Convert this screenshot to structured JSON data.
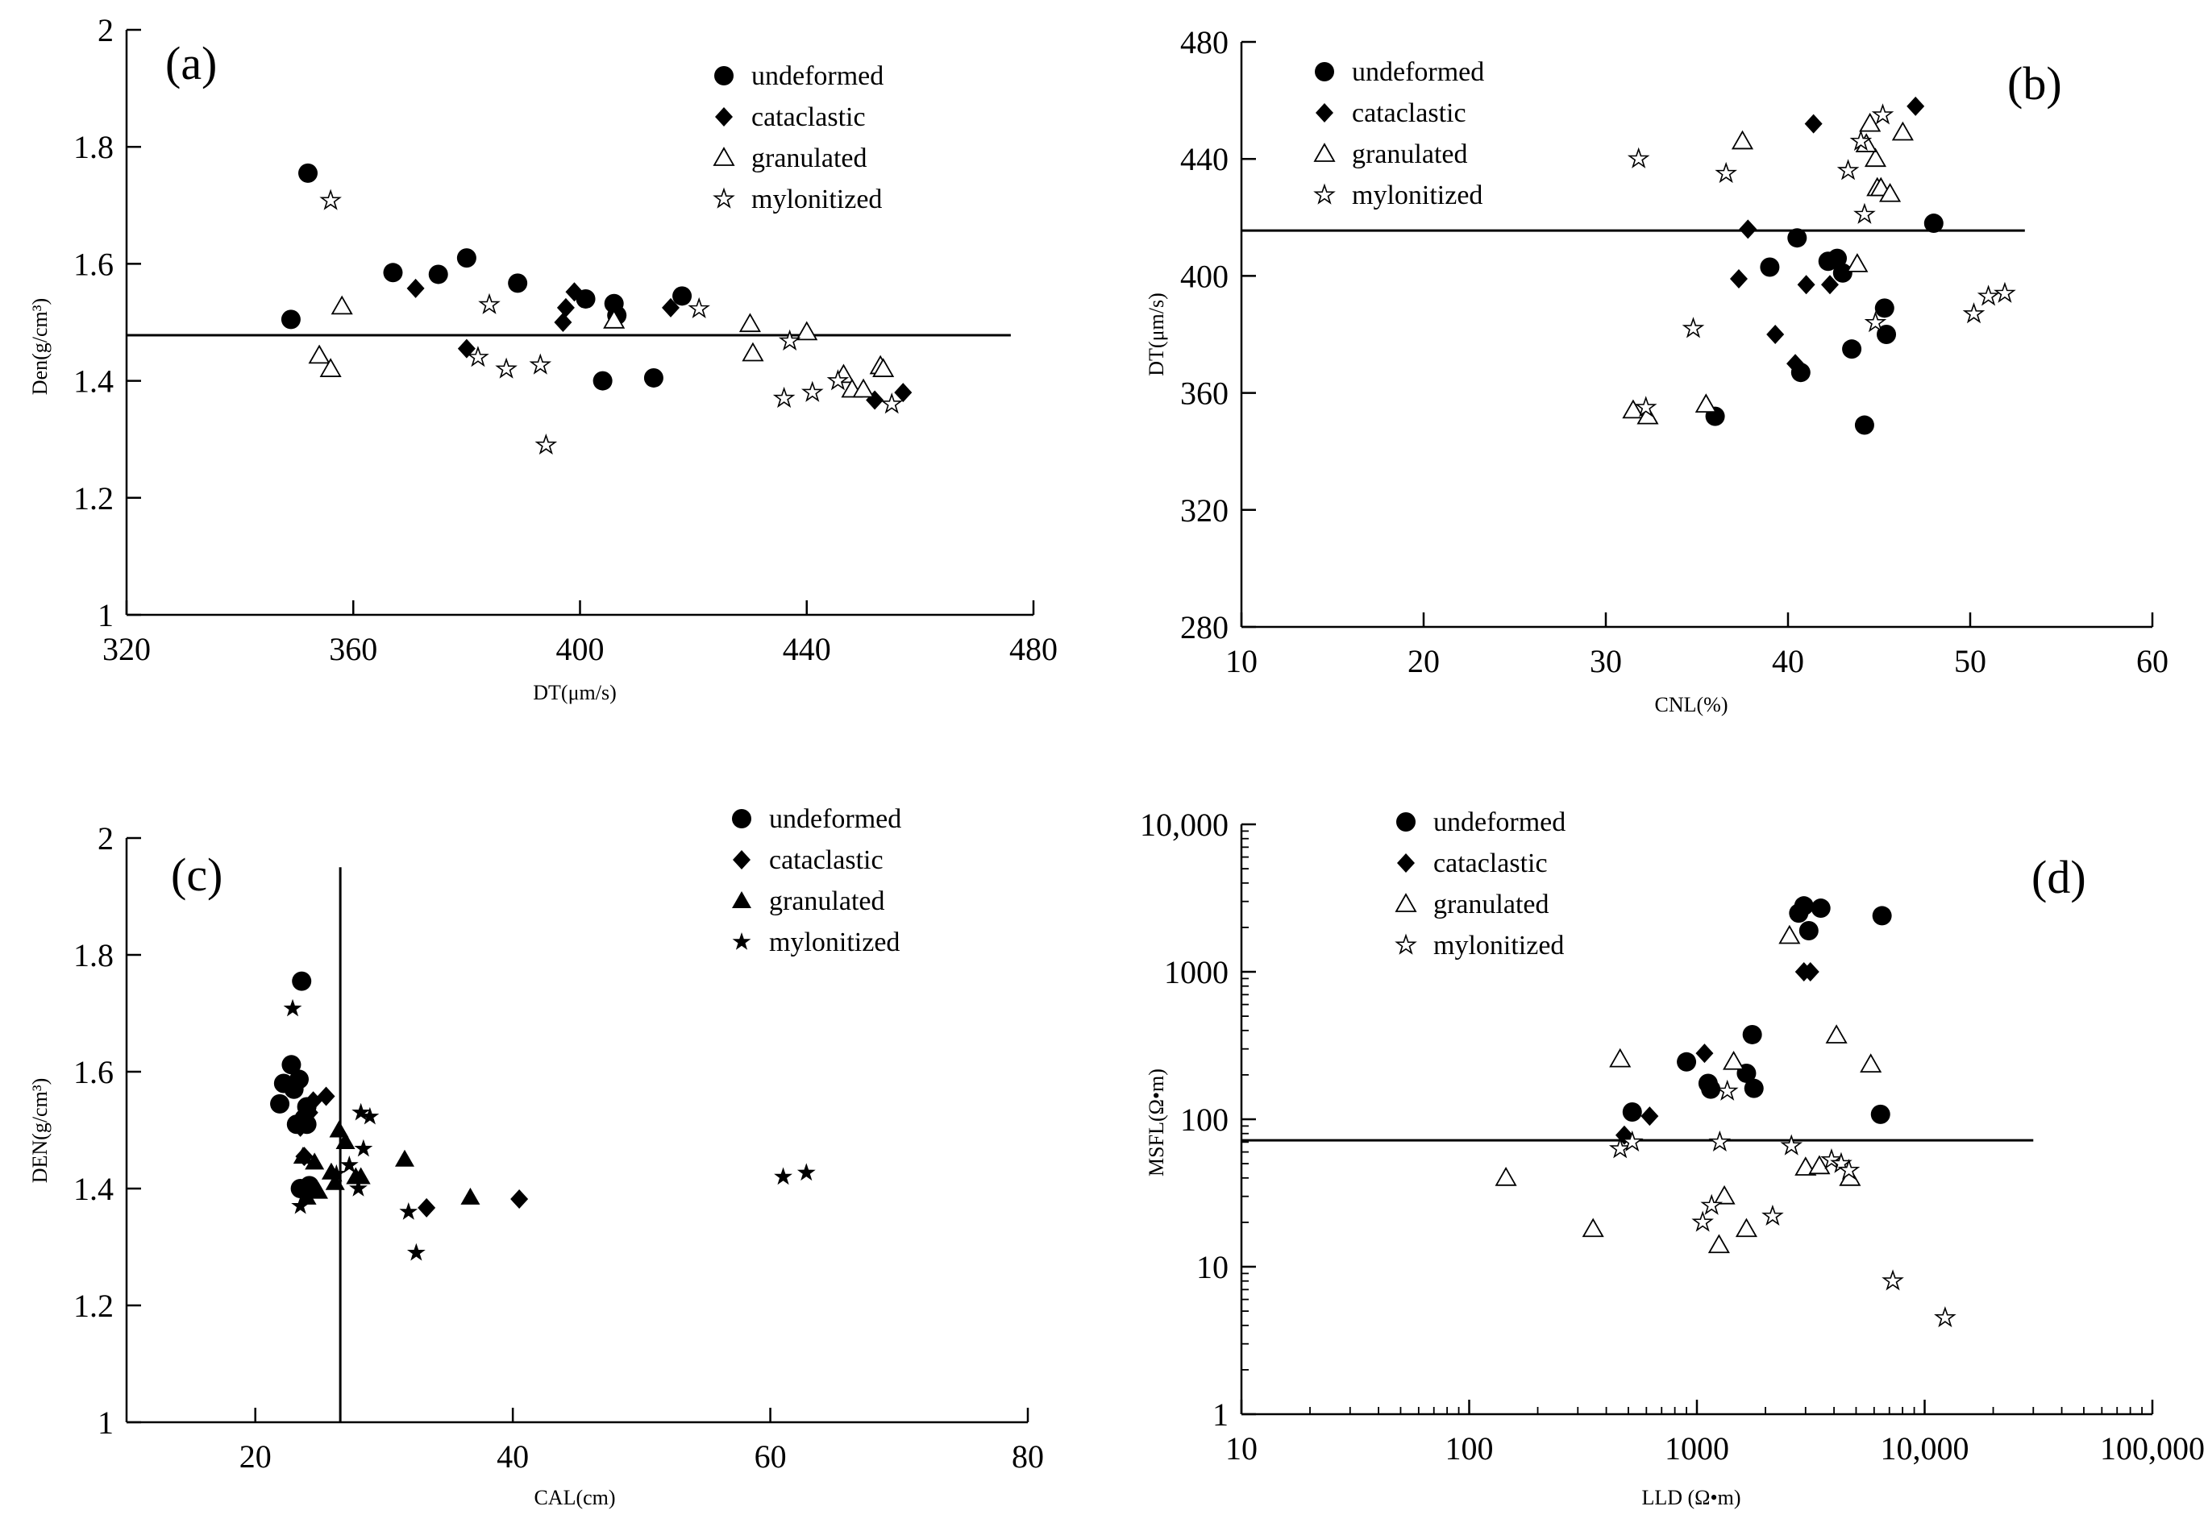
{
  "figure": {
    "marker_color": "#000000",
    "background": "#ffffff"
  },
  "chart_data": [
    {
      "type": "scatter",
      "panel_label": "(a)",
      "xlabel": "DT(μm/s)",
      "ylabel": "Den(g/cm³)",
      "xscale": "linear",
      "yscale": "linear",
      "xlim": [
        320,
        480
      ],
      "ylim": [
        1,
        2
      ],
      "xticks": [
        320,
        360,
        400,
        440,
        480
      ],
      "yticks": [
        1,
        1.2,
        1.4,
        1.6,
        1.8,
        2
      ],
      "xtick_labels": [
        "320",
        "360",
        "400",
        "440",
        "480"
      ],
      "ytick_labels": [
        "1",
        "1.2",
        "1.4",
        "1.6",
        "1.8",
        "2"
      ],
      "legend_position": "top-right",
      "reference_lines": [
        {
          "orientation": "horizontal",
          "value": 1.478,
          "from": 320,
          "to": 476
        }
      ],
      "series": [
        {
          "name": "undeformed",
          "marker": "filled-circle",
          "x": [
            349,
            352,
            367,
            375,
            380,
            389,
            401,
            404,
            406,
            406.5,
            413,
            418
          ],
          "y": [
            1.505,
            1.755,
            1.585,
            1.582,
            1.61,
            1.567,
            1.54,
            1.4,
            1.532,
            1.512,
            1.405,
            1.545
          ]
        },
        {
          "name": "cataclastic",
          "marker": "filled-diamond",
          "x": [
            371,
            380,
            397,
            397.5,
            399,
            416,
            452,
            457
          ],
          "y": [
            1.558,
            1.455,
            1.5,
            1.525,
            1.552,
            1.525,
            1.367,
            1.38
          ]
        },
        {
          "name": "granulated",
          "marker": "open-triangle",
          "x": [
            354,
            356,
            358,
            406,
            430,
            430.5,
            440,
            446.5,
            448,
            450,
            453,
            453.5
          ],
          "y": [
            1.443,
            1.42,
            1.527,
            1.503,
            1.497,
            1.447,
            1.483,
            1.41,
            1.385,
            1.385,
            1.425,
            1.42
          ]
        },
        {
          "name": "mylonitized",
          "marker": "open-star",
          "x": [
            356,
            382,
            384,
            387,
            393,
            394,
            421,
            436,
            437,
            441,
            445.5,
            455
          ],
          "y": [
            1.708,
            1.44,
            1.53,
            1.42,
            1.427,
            1.29,
            1.523,
            1.37,
            1.468,
            1.38,
            1.4,
            1.36
          ]
        }
      ]
    },
    {
      "type": "scatter",
      "panel_label": "(b)",
      "xlabel": "CNL(%)",
      "ylabel": "DT(μm/s)",
      "xscale": "linear",
      "yscale": "linear",
      "xlim": [
        10,
        60
      ],
      "ylim": [
        280,
        480
      ],
      "xticks": [
        10,
        20,
        30,
        40,
        50,
        60
      ],
      "yticks": [
        280,
        320,
        360,
        400,
        440,
        480
      ],
      "xtick_labels": [
        "10",
        "20",
        "30",
        "40",
        "50",
        "60"
      ],
      "ytick_labels": [
        "280",
        "320",
        "360",
        "400",
        "440",
        "480"
      ],
      "legend_position": "top-left",
      "reference_lines": [
        {
          "orientation": "horizontal",
          "value": 415.5,
          "from": 10,
          "to": 53
        }
      ],
      "series": [
        {
          "name": "undeformed",
          "marker": "filled-circle",
          "x": [
            36,
            39,
            40.5,
            40.7,
            42.2,
            42.7,
            43,
            43.5,
            44.2,
            45.3,
            45.4,
            48
          ],
          "y": [
            352,
            403,
            413,
            367,
            405,
            406,
            401,
            375,
            349,
            389,
            380,
            418
          ]
        },
        {
          "name": "cataclastic",
          "marker": "filled-diamond",
          "x": [
            37.3,
            37.8,
            39.3,
            40.4,
            41,
            41.4,
            42.3,
            47
          ],
          "y": [
            399,
            416,
            380,
            370,
            397,
            452,
            397,
            458
          ]
        },
        {
          "name": "granulated",
          "marker": "open-triangle",
          "x": [
            31.5,
            32.3,
            35.5,
            37.5,
            43.8,
            44.5,
            44.8,
            44.3,
            44.9,
            45.1,
            45.6,
            46.3
          ],
          "y": [
            354,
            352,
            356,
            446,
            404,
            452,
            440,
            445,
            430,
            430,
            428,
            449
          ]
        },
        {
          "name": "mylonitized",
          "marker": "open-star",
          "x": [
            31.8,
            32.2,
            34.8,
            36.6,
            43.3,
            44,
            44.2,
            44.8,
            45.2,
            50.2,
            51,
            51.9
          ],
          "y": [
            440,
            355,
            382,
            435,
            436,
            446,
            421,
            384,
            455,
            387,
            393,
            394
          ]
        }
      ]
    },
    {
      "type": "scatter",
      "panel_label": "(c)",
      "xlabel": "CAL(cm)",
      "ylabel": "DEN(g/cm³)",
      "xscale": "linear",
      "yscale": "linear",
      "xlim": [
        10,
        80
      ],
      "ylim": [
        1,
        2
      ],
      "xticks": [
        20,
        40,
        60,
        80
      ],
      "yticks": [
        1,
        1.2,
        1.4,
        1.6,
        1.8,
        2
      ],
      "xtick_labels": [
        "20",
        "40",
        "60",
        "80"
      ],
      "ytick_labels": [
        "1",
        "1.2",
        "1.4",
        "1.6",
        "1.8",
        "2"
      ],
      "legend_position": "top-right",
      "reference_lines": [
        {
          "orientation": "vertical",
          "value": 26.6,
          "from": 1,
          "to": 1.95
        }
      ],
      "series": [
        {
          "name": "undeformed",
          "marker": "filled-circle",
          "x": [
            21.9,
            22.2,
            22.8,
            23,
            23.4,
            23.6,
            23.8,
            24,
            24.2,
            23.5,
            24,
            23.2
          ],
          "y": [
            1.545,
            1.58,
            1.612,
            1.57,
            1.587,
            1.755,
            1.52,
            1.54,
            1.405,
            1.4,
            1.51,
            1.51
          ]
        },
        {
          "name": "cataclastic",
          "marker": "filled-diamond",
          "x": [
            23.5,
            23.8,
            24.2,
            24.5,
            25.5,
            33.3,
            40.5,
            23.9
          ],
          "y": [
            1.505,
            1.455,
            1.53,
            1.55,
            1.558,
            1.367,
            1.382,
            1.525
          ]
        },
        {
          "name": "granulated",
          "marker": "filled-triangle",
          "x": [
            24,
            24.6,
            25.9,
            26.2,
            26.5,
            27,
            27.8,
            28.2,
            31.6,
            36.7,
            23.7,
            24.9
          ],
          "y": [
            1.385,
            1.445,
            1.428,
            1.41,
            1.5,
            1.48,
            1.42,
            1.42,
            1.45,
            1.385,
            1.455,
            1.395
          ]
        },
        {
          "name": "mylonitized",
          "marker": "filled-star",
          "x": [
            22.9,
            23.5,
            27.3,
            28,
            28.2,
            28.4,
            28.9,
            31.9,
            32.5,
            61,
            62.8,
            26.3
          ],
          "y": [
            1.708,
            1.37,
            1.44,
            1.4,
            1.53,
            1.468,
            1.523,
            1.36,
            1.29,
            1.42,
            1.427,
            1.425
          ]
        }
      ]
    },
    {
      "type": "scatter",
      "panel_label": "(d)",
      "xlabel": "LLD (Ω•m)",
      "ylabel": "MSFL(Ω•m)",
      "xscale": "log",
      "yscale": "log",
      "xlim": [
        10,
        100000
      ],
      "ylim": [
        1,
        10000
      ],
      "xticks": [
        10,
        100,
        1000,
        10000,
        100000
      ],
      "yticks": [
        1,
        10,
        100,
        1000,
        10000
      ],
      "xtick_labels": [
        "10",
        "100",
        "1000",
        "10,000",
        "100,000"
      ],
      "ytick_labels": [
        "1",
        "10",
        "100",
        "1000",
        "10,000"
      ],
      "legend_position": "top-left",
      "reference_lines": [
        {
          "orientation": "horizontal",
          "value": 72,
          "from": 10,
          "to": 30000
        }
      ],
      "series": [
        {
          "name": "undeformed",
          "marker": "filled-circle",
          "x": [
            520,
            900,
            1120,
            1150,
            1650,
            1750,
            1780,
            2800,
            2950,
            3100,
            3500,
            6500,
            6400
          ],
          "y": [
            112,
            245,
            175,
            160,
            205,
            375,
            162,
            2500,
            2800,
            1900,
            2700,
            2400,
            108
          ]
        },
        {
          "name": "cataclastic",
          "marker": "filled-diamond",
          "x": [
            480,
            620,
            1080,
            2950,
            3150
          ],
          "y": [
            78,
            105,
            280,
            1000,
            1000
          ]
        },
        {
          "name": "granulated",
          "marker": "open-triangle",
          "x": [
            145,
            350,
            460,
            1250,
            1320,
            1450,
            1650,
            2550,
            3000,
            3450,
            4100,
            4700,
            5800
          ],
          "y": [
            40,
            18,
            255,
            14,
            30,
            245,
            18,
            1750,
            47,
            48,
            370,
            40,
            235
          ]
        },
        {
          "name": "mylonitized",
          "marker": "open-star",
          "x": [
            460,
            520,
            1060,
            1160,
            1260,
            1360,
            2150,
            2600,
            3900,
            4300,
            4650,
            7250,
            12300
          ],
          "y": [
            63,
            70,
            20,
            26,
            70,
            155,
            22,
            66,
            53,
            50,
            45,
            8,
            4.5
          ]
        }
      ]
    }
  ]
}
